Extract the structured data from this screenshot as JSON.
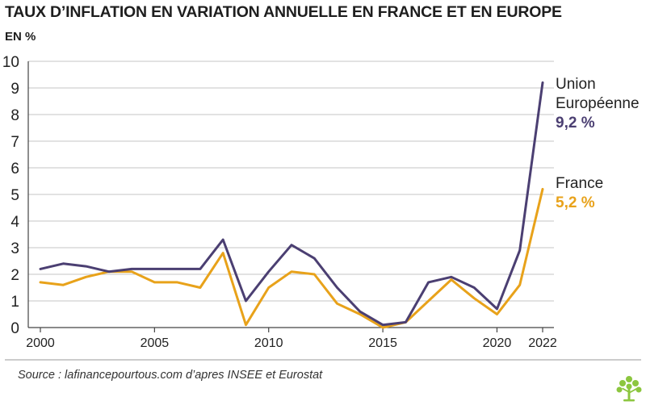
{
  "title": "TAUX D’INFLATION EN VARIATION ANNUELLE EN FRANCE ET EN EUROPE",
  "unit_label": "EN %",
  "source": "Source : lafinancepourtous.com d’apres INSEE et Eurostat",
  "chart_data": {
    "type": "line",
    "title": "TAUX D’INFLATION EN VARIATION ANNUELLE EN FRANCE ET EN EUROPE",
    "ylabel": "EN %",
    "xlabel": "",
    "x": [
      2000,
      2001,
      2002,
      2003,
      2004,
      2005,
      2006,
      2007,
      2008,
      2009,
      2010,
      2011,
      2012,
      2013,
      2014,
      2015,
      2016,
      2017,
      2018,
      2019,
      2020,
      2021,
      2022
    ],
    "x_tick_labels": [
      "2000",
      "2005",
      "2010",
      "2015",
      "2020",
      "2022"
    ],
    "x_ticks": [
      2000,
      2005,
      2010,
      2015,
      2020,
      2022
    ],
    "ylim": [
      0,
      10
    ],
    "y_ticks": [
      "0",
      "1",
      "2",
      "3",
      "4",
      "5",
      "6",
      "7",
      "8",
      "9",
      "10"
    ],
    "grid": "horizontal",
    "series": [
      {
        "name": "Union Européenne",
        "color": "#4b3f72",
        "end_label_line1": "Union",
        "end_label_line2": "Européenne",
        "end_value_label": "9,2 %",
        "values": [
          2.2,
          2.4,
          2.3,
          2.1,
          2.2,
          2.2,
          2.2,
          2.2,
          3.3,
          1.0,
          2.1,
          3.1,
          2.6,
          1.5,
          0.6,
          0.1,
          0.2,
          1.7,
          1.9,
          1.5,
          0.7,
          2.9,
          9.2
        ]
      },
      {
        "name": "France",
        "color": "#e8a21a",
        "end_label_line1": "France",
        "end_value_label": "5,2 %",
        "values": [
          1.7,
          1.6,
          1.9,
          2.1,
          2.1,
          1.7,
          1.7,
          1.5,
          2.8,
          0.1,
          1.5,
          2.1,
          2.0,
          0.9,
          0.5,
          0.0,
          0.2,
          1.0,
          1.8,
          1.1,
          0.5,
          1.6,
          5.2
        ]
      }
    ]
  }
}
